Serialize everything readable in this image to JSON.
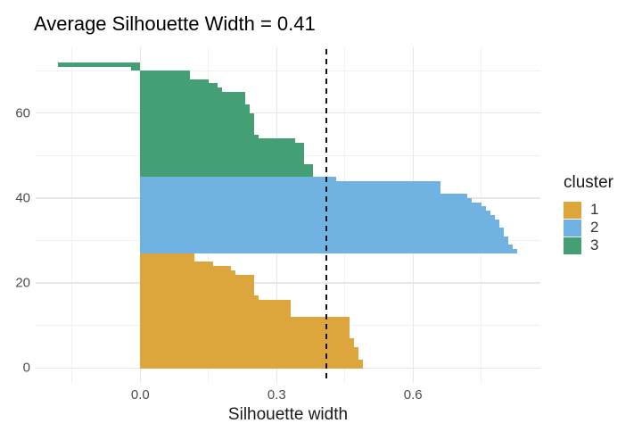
{
  "figure": {
    "kind": "silhouette-plot"
  },
  "colors": {
    "cluster1": "#DDA63C",
    "cluster2": "#70B2E2",
    "cluster3": "#459F75",
    "grid_major": "#E7E7E7",
    "grid_minor": "#F1F1F1",
    "dashed_line": "#111111",
    "tick_text": "#4D4D4D",
    "title_text": "#000000"
  },
  "chart_data": {
    "type": "bar",
    "orientation": "horizontal",
    "title": "Average Silhouette Width = 0.41",
    "xlabel": "Silhouette width",
    "ylabel": "",
    "xlim": [
      -0.23,
      0.88
    ],
    "ylim": [
      -3.5,
      75.5
    ],
    "grid": true,
    "x_ticks": [
      {
        "value": 0.0,
        "label": "0.0"
      },
      {
        "value": 0.3,
        "label": "0.3"
      },
      {
        "value": 0.6,
        "label": "0.6"
      }
    ],
    "x_minor_ticks": [
      -0.15,
      0.15,
      0.45,
      0.75
    ],
    "y_ticks": [
      {
        "value": 0,
        "label": "0"
      },
      {
        "value": 20,
        "label": "20"
      },
      {
        "value": 40,
        "label": "40"
      },
      {
        "value": 60,
        "label": "60"
      }
    ],
    "y_minor_ticks": [
      10,
      30,
      50,
      70
    ],
    "n_observations": 72,
    "average_silhouette_width": 0.41,
    "dashed_line_x": 0.41,
    "legend": {
      "title": "cluster",
      "position": "right",
      "entries": [
        {
          "label": "1",
          "color": "#DDA63C"
        },
        {
          "label": "2",
          "color": "#70B2E2"
        },
        {
          "label": "3",
          "color": "#459F75"
        }
      ]
    },
    "clusters_top_to_bottom": [
      {
        "cluster": "3",
        "color": "#459F75",
        "n": 27,
        "silhouette_widths": [
          -0.18,
          -0.02,
          0.11,
          0.11,
          0.15,
          0.17,
          0.18,
          0.23,
          0.23,
          0.23,
          0.24,
          0.24,
          0.25,
          0.25,
          0.25,
          0.25,
          0.25,
          0.26,
          0.34,
          0.36,
          0.36,
          0.36,
          0.36,
          0.36,
          0.38,
          0.38,
          0.38
        ]
      },
      {
        "cluster": "2",
        "color": "#70B2E2",
        "n": 18,
        "silhouette_widths": [
          0.43,
          0.66,
          0.66,
          0.66,
          0.72,
          0.73,
          0.75,
          0.76,
          0.77,
          0.78,
          0.79,
          0.79,
          0.8,
          0.8,
          0.81,
          0.81,
          0.82,
          0.83
        ]
      },
      {
        "cluster": "1",
        "color": "#DDA63C",
        "n": 27,
        "silhouette_widths": [
          0.12,
          0.12,
          0.16,
          0.2,
          0.21,
          0.25,
          0.25,
          0.25,
          0.25,
          0.25,
          0.26,
          0.33,
          0.33,
          0.33,
          0.33,
          0.46,
          0.46,
          0.46,
          0.46,
          0.46,
          0.47,
          0.47,
          0.48,
          0.48,
          0.48,
          0.49,
          0.49
        ]
      }
    ]
  }
}
